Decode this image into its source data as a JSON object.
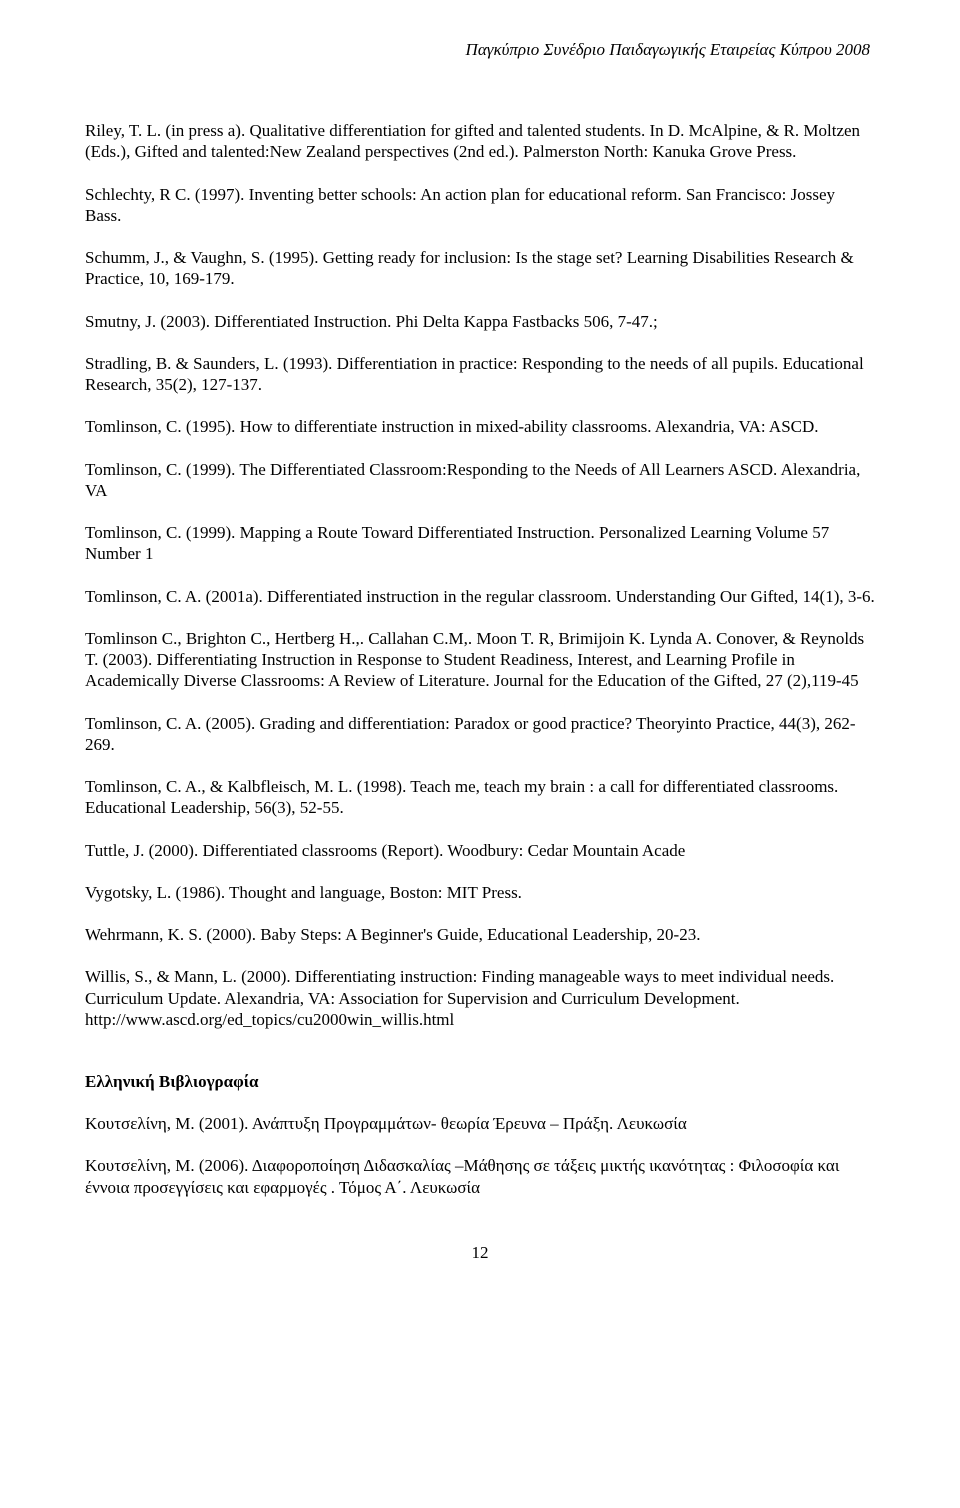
{
  "header": "Παγκύπριο Συνέδριο Παιδαγωγικής Εταιρείας Κύπρου  2008",
  "refs": [
    "Riley, T. L. (in press a). Qualitative differentiation for gifted and talented students. In D. McAlpine, & R. Moltzen (Eds.), Gifted and talented:New Zealand perspectives (2nd ed.). Palmerston North: Kanuka Grove Press.",
    "Schlechty, R C. (1997). Inventing better schools: An action plan for educational reform. San Francisco: Jossey Bass.",
    "Schumm, J., & Vaughn, S. (1995). Getting ready for inclusion: Is the stage set? Learning Disabilities Research & Practice, 10, 169-179.",
    "Smutny, J. (2003). Differentiated Instruction. Phi Delta Kappa Fastbacks 506, 7-47.;",
    "Stradling, B. & Saunders, L. (1993). Differentiation in practice: Responding to the needs of all pupils. Educational Research, 35(2), 127-137.",
    "Tomlinson, C. (1995). How to differentiate instruction in mixed-ability classrooms. Alexandria, VA: ASCD.",
    "Tomlinson, C. (1999). The Differentiated Classroom:Responding to the Needs of All Learners  ASCD. Alexandria, VA",
    "Tomlinson, C. (1999). Mapping a Route Toward Differentiated Instruction. Personalized Learning Volume 57 Number 1",
    "Tomlinson, C. A. (2001a). Differentiated instruction in the regular classroom. Understanding Our Gifted, 14(1), 3-6.",
    "Tomlinson C., Brighton C., Hertberg H.,. Callahan C.M,. Moon T. R, Brimijoin K. Lynda A. Conover, & Reynolds T. (2003). Differentiating Instruction in Response to Student Readiness, Interest, and Learning Profile in Academically Diverse Classrooms: A Review of Literature. Journal for the Education of the Gifted, 27 (2),119-45",
    "Tomlinson, C. A. (2005). Grading and differentiation: Paradox or good practice? Theoryinto Practice, 44(3), 262-269.",
    "Tomlinson, C. A., & Kalbfleisch, M. L. (1998). Teach me, teach my brain : a call for differentiated classrooms. Educational Leadership, 56(3), 52-55.",
    "Tuttle, J. (2000). Differentiated classrooms (Report). Woodbury: Cedar Mountain Acade",
    "Vygotsky, L. (1986). Thought and language, Boston: MIT Press.",
    "Wehrmann, K. S. (2000). Baby Steps: A Beginner's Guide, Educational Leadership,  20-23.",
    "Willis, S., & Mann, L. (2000). Differentiating instruction: Finding manageable ways to meet individual needs. Curriculum Update. Alexandria, VA: Association for Supervision and Curriculum Development. http://www.ascd.org/ed_topics/cu2000win_willis.html"
  ],
  "section_title": "Ελληνική Βιβλιογραφία",
  "greek_refs": [
    "Κουτσελίνη, Μ. (2001). Ανάπτυξη Προγραμμάτων- θεωρία  Έρευνα – Πράξη. Λευκωσία",
    "Κουτσελίνη, Μ. (2006). Διαφοροποίηση Διδασκαλίας –Μάθησης σε τάξεις μικτής ικανότητας : Φιλοσοφία και έννοια προσεγγίσεις και εφαρμογές . Τόμος Α΄. Λευκωσία"
  ],
  "page_number": "12"
}
